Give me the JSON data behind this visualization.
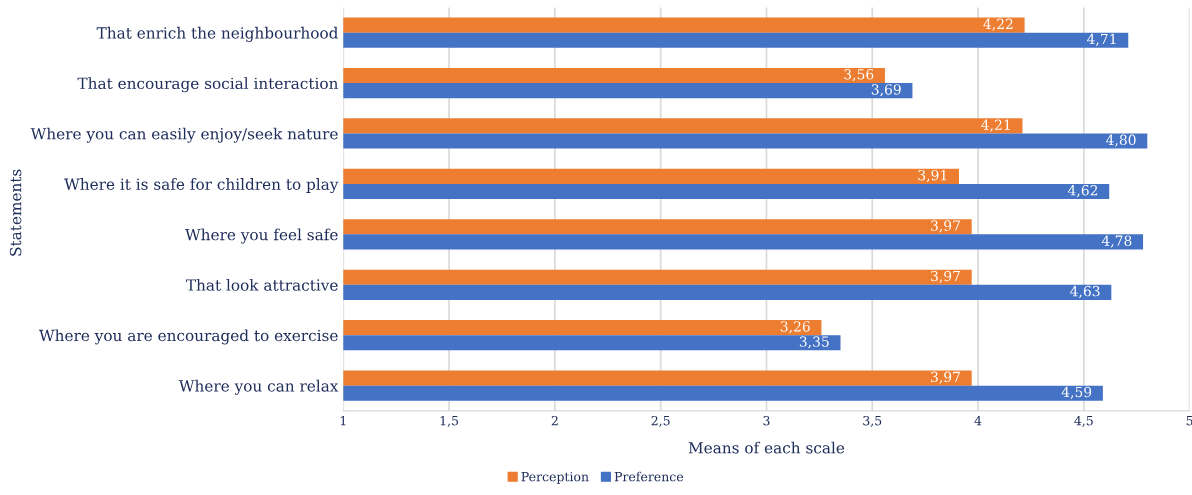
{
  "chart_data": {
    "type": "bar",
    "orientation": "horizontal",
    "xlabel": "Means of each scale",
    "ylabel": "Statements",
    "categories": [
      "That enrich the neighbourhood",
      "That encourage social interaction",
      "Where you can easily enjoy/seek nature",
      "Where it is safe for children to play",
      "Where you feel safe",
      "That look attractive",
      "Where you are encouraged to exercise",
      "Where you can relax"
    ],
    "series": [
      {
        "name": "Perception",
        "color": "#ed7d31",
        "values": [
          4.22,
          3.56,
          4.21,
          3.91,
          3.97,
          3.97,
          3.26,
          3.97
        ],
        "value_labels": [
          "4,22",
          "3,56",
          "4,21",
          "3,91",
          "3,97",
          "3,97",
          "3,26",
          "3,97"
        ]
      },
      {
        "name": "Preference",
        "color": "#4472c4",
        "values": [
          4.71,
          3.69,
          4.8,
          4.62,
          4.78,
          4.63,
          3.35,
          4.59
        ],
        "value_labels": [
          "4,71",
          "3,69",
          "4,80",
          "4,62",
          "4,78",
          "4,63",
          "3,35",
          "4,59"
        ]
      }
    ],
    "xlim": [
      1,
      5
    ],
    "xticks": [
      1,
      {
        "value": 1.5,
        "label": "1,5"
      },
      2,
      {
        "value": 2.5,
        "label": "2,5"
      },
      3,
      {
        "value": 3.5,
        "label": "3,5"
      },
      4,
      {
        "value": 4.5,
        "label": "4,5"
      },
      5
    ],
    "grid": "x",
    "legend": "bottom"
  }
}
